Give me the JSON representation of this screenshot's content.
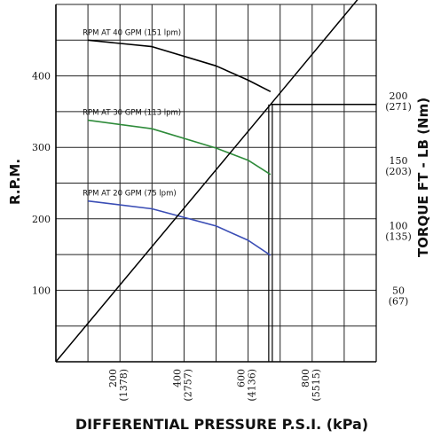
{
  "chart_data": {
    "type": "line",
    "xlabel": "DIFFERENTIAL PRESSURE  P.S.I. (kPa)",
    "ylabel": "R.P.M.",
    "y2label": "TORQUE  FT - LB (Nm)",
    "xlim": [
      0,
      1000
    ],
    "ylim": [
      0,
      500
    ],
    "y2lim": [
      0,
      275
    ],
    "grid": true,
    "x_ticks": [
      {
        "value": 200,
        "psi": "200",
        "kpa": "(1378)"
      },
      {
        "value": 400,
        "psi": "400",
        "kpa": "(2757)"
      },
      {
        "value": 600,
        "psi": "600",
        "kpa": "(4136)"
      },
      {
        "value": 800,
        "psi": "800",
        "kpa": "(5515)"
      }
    ],
    "y_ticks": [
      100,
      200,
      300,
      400
    ],
    "y2_ticks": [
      {
        "value": 50,
        "ftlb": "50",
        "nm": "(67)"
      },
      {
        "value": 100,
        "ftlb": "100",
        "nm": "(135)"
      },
      {
        "value": 150,
        "ftlb": "150",
        "nm": "(203)"
      },
      {
        "value": 200,
        "ftlb": "200",
        "nm": "(271)"
      }
    ],
    "pressure_limit_psi": 670,
    "series": [
      {
        "name": "RPM AT 40 GPM (151 lpm)",
        "color": "#000000",
        "x": [
          100,
          300,
          500,
          600,
          670
        ],
        "y": [
          450,
          441,
          414,
          394,
          378
        ]
      },
      {
        "name": "RPM AT 30 GPM (113 lpm)",
        "color": "#2e8b3a",
        "x": [
          100,
          300,
          500,
          600,
          670
        ],
        "y": [
          338,
          326,
          299,
          282,
          262
        ]
      },
      {
        "name": "RPM AT 20 GPM (75 lpm)",
        "color": "#3a4db5",
        "x": [
          100,
          300,
          500,
          600,
          670
        ],
        "y": [
          225,
          214,
          190,
          170,
          149
        ]
      },
      {
        "name": "torque",
        "axis": "y2",
        "color": "#000000",
        "x": [
          0,
          670,
          1000
        ],
        "y": [
          0,
          198,
          296
        ]
      },
      {
        "name": "torque at max pressure",
        "axis": "y2",
        "color": "#000000",
        "x": [
          670,
          1000
        ],
        "y": [
          198,
          198
        ]
      }
    ]
  }
}
